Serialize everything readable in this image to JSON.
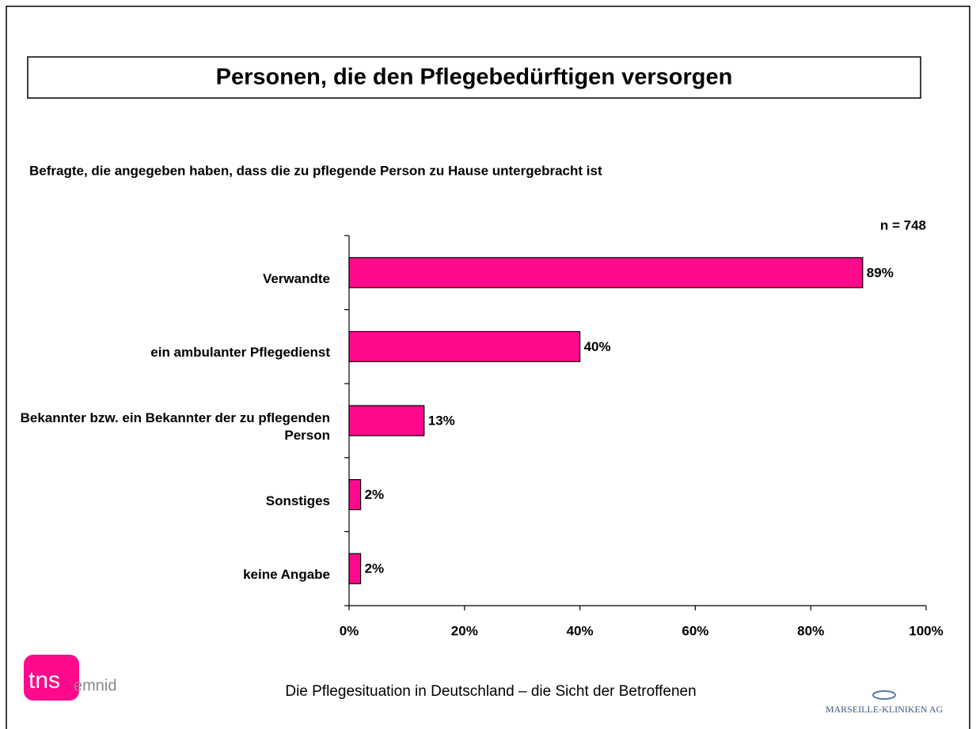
{
  "chart_data": {
    "type": "bar",
    "orientation": "horizontal",
    "title": "Personen, die den Pflegebedürftigen versorgen",
    "subtitle": "Befragte, die angegeben haben, dass die zu pflegende Person zu Hause untergebracht ist",
    "annotation": "n = 748",
    "categories": [
      "Verwandte",
      "ein ambulanter Pflegedienst",
      "Bekannter bzw. ein Bekannter der zu pflegenden Person",
      "Sonstiges",
      "keine Angabe"
    ],
    "values": [
      89,
      40,
      13,
      2,
      2
    ],
    "value_labels": [
      "89%",
      "40%",
      "13%",
      "2%",
      "2%"
    ],
    "color": "#ff0a8c",
    "xlim": [
      0,
      100
    ],
    "xticks": [
      {
        "value": 0,
        "label": "0%"
      },
      {
        "value": 20,
        "label": "20%"
      },
      {
        "value": 40,
        "label": "40%"
      },
      {
        "value": 60,
        "label": "60%"
      },
      {
        "value": 80,
        "label": "80%"
      },
      {
        "value": 100,
        "label": "100%"
      }
    ],
    "grid": false
  },
  "footer": "Die Pflegesituation in Deutschland – die Sicht der Betroffenen",
  "logos": {
    "tns": "tns",
    "emnid": "emnid",
    "marseille": "MARSEILLE-KLINIKEN AG"
  }
}
